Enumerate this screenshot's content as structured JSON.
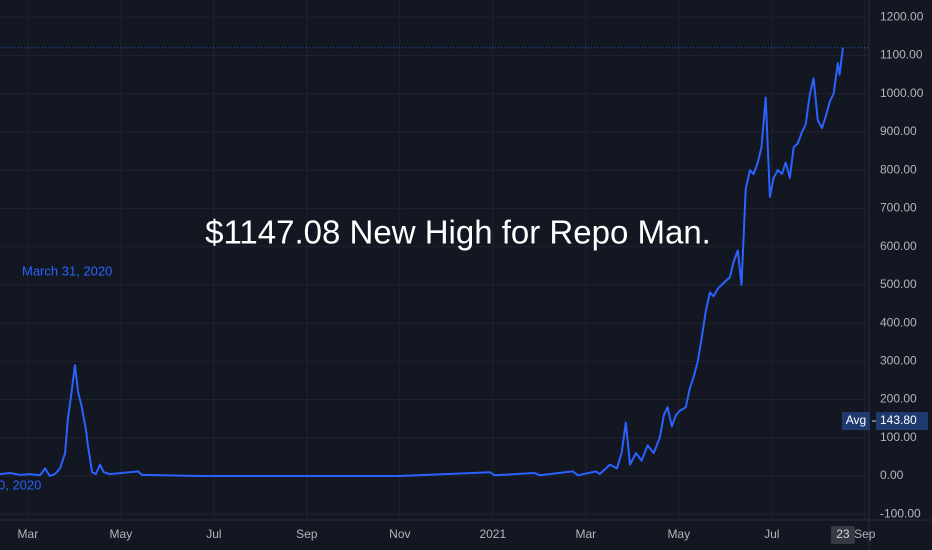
{
  "chart_data": {
    "type": "line",
    "title": "$1147.08 New High for Repo Man.",
    "annotations": [
      "March 31, 2020",
      "0, 2020"
    ],
    "date_badge": "23",
    "avg": {
      "label": "Avg",
      "value": 143.8,
      "value_label": "143.80"
    },
    "grid": true,
    "xlim": [
      1.4,
      20.07
    ],
    "xticks": [
      {
        "value": 2,
        "label": "Mar"
      },
      {
        "value": 4,
        "label": "May"
      },
      {
        "value": 6,
        "label": "Jul"
      },
      {
        "value": 8,
        "label": "Sep"
      },
      {
        "value": 10,
        "label": "Nov"
      },
      {
        "value": 12,
        "label": "2021"
      },
      {
        "value": 14,
        "label": "Mar"
      },
      {
        "value": 16,
        "label": "May"
      },
      {
        "value": 18,
        "label": "Jul"
      },
      {
        "value": 20,
        "label": "Sep"
      }
    ],
    "ylim": [
      -115,
      1245
    ],
    "yticks": [
      {
        "value": -100,
        "label": "-100.00"
      },
      {
        "value": 0,
        "label": "0.00"
      },
      {
        "value": 100,
        "label": "100.00"
      },
      {
        "value": 200,
        "label": "200.00"
      },
      {
        "value": 300,
        "label": "300.00"
      },
      {
        "value": 400,
        "label": "400.00"
      },
      {
        "value": 500,
        "label": "500.00"
      },
      {
        "value": 600,
        "label": "600.00"
      },
      {
        "value": 700,
        "label": "700.00"
      },
      {
        "value": 800,
        "label": "800.00"
      },
      {
        "value": 900,
        "label": "900.00"
      },
      {
        "value": 1000,
        "label": "1000.00"
      },
      {
        "value": 1100,
        "label": "1100.00"
      },
      {
        "value": 1200,
        "label": "1200.00"
      }
    ],
    "series": [
      {
        "color": "#2962ff",
        "x": [
          1.4,
          1.61,
          1.83,
          2.04,
          2.26,
          2.37,
          2.47,
          2.58,
          2.69,
          2.8,
          2.86,
          2.95,
          3.01,
          3.08,
          3.16,
          3.25,
          3.29,
          3.38,
          3.46,
          3.55,
          3.63,
          3.76,
          4.37,
          4.45,
          5.7,
          7.85,
          10.0,
          11.94,
          12.04,
          12.9,
          13.01,
          13.72,
          13.83,
          14.22,
          14.3,
          14.52,
          14.67,
          14.77,
          14.86,
          14.95,
          15.08,
          15.2,
          15.33,
          15.46,
          15.59,
          15.68,
          15.76,
          15.85,
          15.94,
          16.02,
          16.15,
          16.24,
          16.32,
          16.41,
          16.49,
          16.58,
          16.67,
          16.75,
          16.84,
          16.92,
          17.01,
          17.1,
          17.18,
          17.27,
          17.35,
          17.44,
          17.53,
          17.61,
          17.7,
          17.78,
          17.87,
          17.96,
          18.04,
          18.13,
          18.22,
          18.3,
          18.39,
          18.47,
          18.56,
          18.65,
          18.73,
          18.82,
          18.9,
          18.99,
          19.08,
          19.16,
          19.25,
          19.33,
          19.42,
          19.46,
          19.53
        ],
        "values": [
          5,
          8,
          3,
          5,
          2,
          20,
          0,
          5,
          20,
          60,
          150,
          230,
          290,
          220,
          180,
          120,
          80,
          10,
          5,
          30,
          10,
          5,
          12,
          3,
          0,
          0,
          0,
          10,
          2,
          8,
          2,
          12,
          2,
          12,
          5,
          30,
          20,
          60,
          140,
          30,
          60,
          40,
          80,
          60,
          100,
          160,
          180,
          130,
          160,
          170,
          180,
          230,
          260,
          300,
          360,
          430,
          480,
          470,
          490,
          500,
          510,
          520,
          560,
          590,
          500,
          750,
          800,
          790,
          820,
          860,
          990,
          730,
          780,
          800,
          790,
          820,
          780,
          860,
          870,
          900,
          920,
          1000,
          1040,
          930,
          910,
          940,
          980,
          1000,
          1080,
          1050,
          1120
        ]
      }
    ]
  }
}
